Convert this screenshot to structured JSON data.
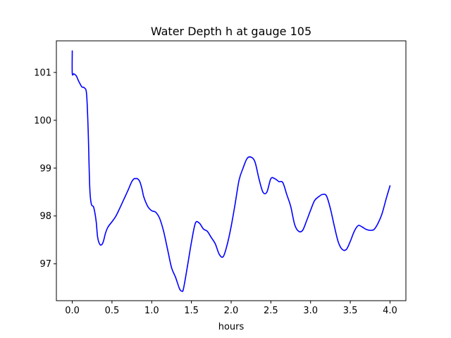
{
  "chart_data": {
    "type": "line",
    "title": "Water Depth h at gauge 105",
    "xlabel": "hours",
    "ylabel": "",
    "xlim": [
      -0.2,
      4.2
    ],
    "ylim": [
      96.23,
      101.66
    ],
    "x_ticks": [
      0.0,
      0.5,
      1.0,
      1.5,
      2.0,
      2.5,
      3.0,
      3.5,
      4.0
    ],
    "x_tick_labels": [
      "0.0",
      "0.5",
      "1.0",
      "1.5",
      "2.0",
      "2.5",
      "3.0",
      "3.5",
      "4.0"
    ],
    "y_ticks": [
      97,
      98,
      99,
      100,
      101
    ],
    "y_tick_labels": [
      "97",
      "98",
      "99",
      "100",
      "101"
    ],
    "grid": false,
    "series": [
      {
        "color": "#0000ff",
        "x": [
          0.0,
          0.0,
          0.02,
          0.05,
          0.08,
          0.12,
          0.15,
          0.18,
          0.2,
          0.22,
          0.24,
          0.27,
          0.3,
          0.32,
          0.35,
          0.38,
          0.4,
          0.42,
          0.45,
          0.5,
          0.55,
          0.6,
          0.65,
          0.7,
          0.75,
          0.78,
          0.8,
          0.82,
          0.85,
          0.88,
          0.9,
          0.95,
          1.0,
          1.05,
          1.1,
          1.15,
          1.2,
          1.25,
          1.3,
          1.35,
          1.38,
          1.4,
          1.45,
          1.5,
          1.55,
          1.6,
          1.65,
          1.7,
          1.75,
          1.8,
          1.85,
          1.9,
          1.95,
          2.0,
          2.05,
          2.1,
          2.15,
          2.2,
          2.25,
          2.3,
          2.35,
          2.4,
          2.45,
          2.5,
          2.55,
          2.6,
          2.65,
          2.7,
          2.75,
          2.8,
          2.85,
          2.9,
          2.95,
          3.0,
          3.05,
          3.1,
          3.15,
          3.2,
          3.25,
          3.3,
          3.35,
          3.4,
          3.45,
          3.5,
          3.55,
          3.6,
          3.65,
          3.7,
          3.75,
          3.8,
          3.85,
          3.9,
          3.95,
          4.0
        ],
        "y": [
          101.45,
          100.98,
          100.97,
          100.93,
          100.82,
          100.7,
          100.68,
          100.55,
          99.8,
          98.6,
          98.25,
          98.18,
          97.9,
          97.55,
          97.4,
          97.42,
          97.52,
          97.65,
          97.77,
          97.88,
          98.0,
          98.17,
          98.35,
          98.53,
          98.72,
          98.78,
          98.78,
          98.78,
          98.72,
          98.55,
          98.4,
          98.2,
          98.11,
          98.08,
          97.95,
          97.68,
          97.3,
          96.92,
          96.72,
          96.48,
          96.43,
          96.48,
          96.95,
          97.45,
          97.85,
          97.85,
          97.73,
          97.68,
          97.55,
          97.42,
          97.2,
          97.15,
          97.4,
          97.78,
          98.25,
          98.75,
          99.0,
          99.2,
          99.23,
          99.13,
          98.78,
          98.5,
          98.5,
          98.78,
          98.78,
          98.72,
          98.7,
          98.45,
          98.2,
          97.82,
          97.68,
          97.7,
          97.9,
          98.12,
          98.32,
          98.4,
          98.45,
          98.42,
          98.15,
          97.78,
          97.45,
          97.3,
          97.3,
          97.47,
          97.68,
          97.8,
          97.77,
          97.72,
          97.7,
          97.72,
          97.85,
          98.05,
          98.35,
          98.63
        ]
      }
    ]
  }
}
